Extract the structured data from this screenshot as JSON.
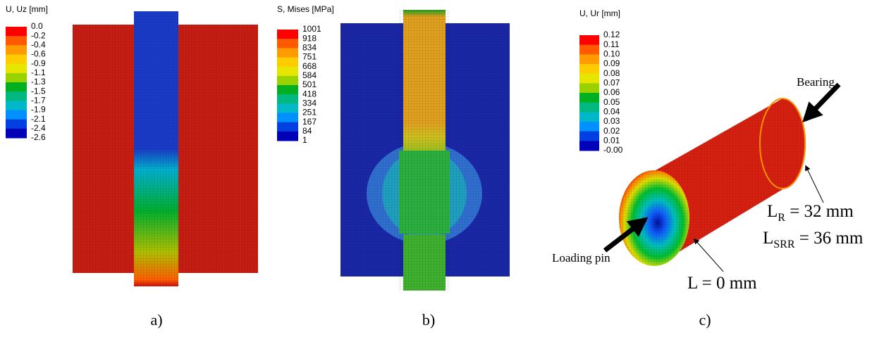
{
  "panels": [
    {
      "legend_title": "U, Uz [mm]",
      "legend_labels": [
        "0.0",
        "-0.2",
        "-0.4",
        "-0.6",
        "-0.9",
        "-1.1",
        "-1.3",
        "-1.5",
        "-1.7",
        "-1.9",
        "-2.1",
        "-2.4",
        "-2.6"
      ],
      "caption": "a)"
    },
    {
      "legend_title": "S, Mises [MPa]",
      "legend_labels": [
        "1001",
        "918",
        "834",
        "751",
        "668",
        "584",
        "501",
        "418",
        "334",
        "251",
        "167",
        "84",
        "1"
      ],
      "caption": "b)"
    },
    {
      "legend_title": "U, Ur [mm]",
      "legend_labels": [
        "0.12",
        "0.11",
        "0.10",
        "0.09",
        "0.08",
        "0.07",
        "0.06",
        "0.05",
        "0.04",
        "0.03",
        "0.02",
        "0.01",
        "-0.00"
      ],
      "caption": "c)"
    }
  ],
  "annotations": {
    "bearing": "Bearing",
    "loading_pin": "Loading pin",
    "l_zero": "L = 0 mm",
    "l_r": {
      "main": "L",
      "sub": "R",
      "rest": " = 32 mm"
    },
    "l_srr": {
      "main": "L",
      "sub": "SRR",
      "rest": " = 36 mm"
    }
  }
}
